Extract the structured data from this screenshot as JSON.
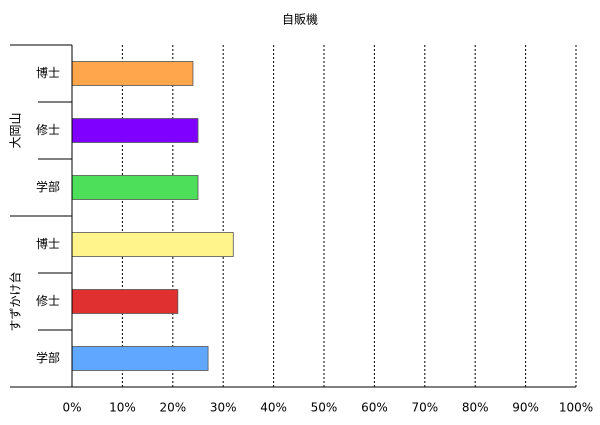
{
  "chart_data": {
    "type": "bar",
    "title": "自販機",
    "groups": [
      {
        "name": "大岡山",
        "categories": [
          "博士",
          "修士",
          "学部"
        ],
        "values": [
          24,
          25,
          25
        ],
        "colors": [
          "#ffa64d",
          "#7f00ff",
          "#4ddf5a"
        ]
      },
      {
        "name": "すずかけ台",
        "categories": [
          "博士",
          "修士",
          "学部"
        ],
        "values": [
          32,
          21,
          27
        ],
        "colors": [
          "#fff38c",
          "#e03030",
          "#5fa7ff"
        ]
      }
    ],
    "xlim": [
      0,
      100
    ],
    "xticks": [
      {
        "value": 0,
        "label": "0%"
      },
      {
        "value": 10,
        "label": "10%"
      },
      {
        "value": 20,
        "label": "20%"
      },
      {
        "value": 30,
        "label": "30%"
      },
      {
        "value": 40,
        "label": "40%"
      },
      {
        "value": 50,
        "label": "50%"
      },
      {
        "value": 60,
        "label": "60%"
      },
      {
        "value": 70,
        "label": "70%"
      },
      {
        "value": 80,
        "label": "80%"
      },
      {
        "value": 90,
        "label": "90%"
      },
      {
        "value": 100,
        "label": "100%"
      }
    ],
    "grid": true
  }
}
